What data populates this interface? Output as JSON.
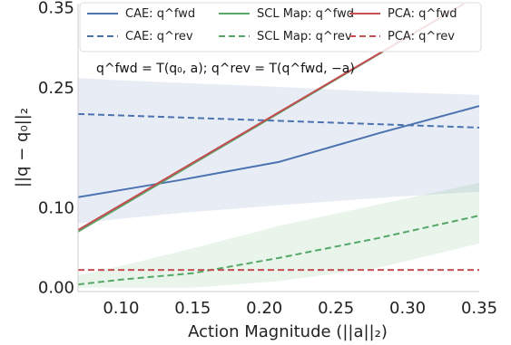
{
  "chart_data": {
    "type": "line",
    "xlabel": "Action Magnitude (||a||₂)",
    "ylabel": "||q − q₀||₂",
    "xlim": [
      0.07,
      0.35
    ],
    "ylim": [
      -0.005,
      0.355
    ],
    "xticks": [
      "0.10",
      "0.15",
      "0.20",
      "0.25",
      "0.30",
      "0.35"
    ],
    "xtick_values": [
      0.1,
      0.15,
      0.2,
      0.25,
      0.3,
      0.35
    ],
    "yticks": [
      "0.00",
      "0.10",
      "0.25",
      "0.35"
    ],
    "ytick_values": [
      0.0,
      0.1,
      0.25,
      0.35
    ],
    "grid": false,
    "legend_position": "top",
    "annotation": "q^fwd = T(q₀, a);  q^rev = T(q^fwd, −a)",
    "series": [
      {
        "name": "CAE: q^fwd",
        "color": "#4c72b0",
        "dash": "solid",
        "x": [
          0.07,
          0.1,
          0.14,
          0.21,
          0.28,
          0.35
        ],
        "y": [
          0.113,
          0.122,
          0.134,
          0.157,
          0.193,
          0.227
        ],
        "band_lower": [
          0.08,
          0.086,
          0.093,
          0.103,
          0.112,
          0.12
        ],
        "band_upper": [
          0.262,
          0.259,
          0.256,
          0.251,
          0.245,
          0.241
        ]
      },
      {
        "name": "CAE: q^rev",
        "color": "#4c72b0",
        "dash": "dashed",
        "x": [
          0.07,
          0.35
        ],
        "y": [
          0.217,
          0.2
        ]
      },
      {
        "name": "SCL Map: q^fwd",
        "color": "#55a868",
        "dash": "solid",
        "x": [
          0.07,
          0.35
        ],
        "y": [
          0.07,
          0.366
        ]
      },
      {
        "name": "SCL Map: q^rev",
        "color": "#55a868",
        "dash": "dashed",
        "x": [
          0.07,
          0.1,
          0.15,
          0.21,
          0.28,
          0.35
        ],
        "y": [
          0.004,
          0.01,
          0.018,
          0.037,
          0.062,
          0.09
        ],
        "band_lower": [
          0.0,
          0.0,
          0.0,
          0.008,
          0.025,
          0.055
        ],
        "band_upper": [
          0.015,
          0.027,
          0.049,
          0.077,
          0.104,
          0.131
        ]
      },
      {
        "name": "PCA: q^fwd",
        "color": "#c44e52",
        "dash": "solid",
        "x": [
          0.07,
          0.35
        ],
        "y": [
          0.072,
          0.366
        ]
      },
      {
        "name": "PCA: q^rev",
        "color": "#c44e52",
        "dash": "dashed",
        "x": [
          0.07,
          0.35
        ],
        "y": [
          0.022,
          0.022
        ]
      }
    ]
  }
}
